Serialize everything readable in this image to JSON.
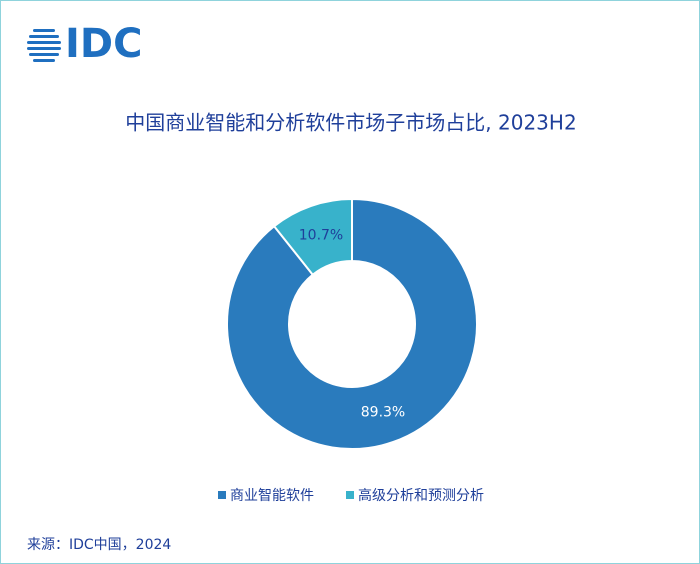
{
  "logo": "IDC",
  "chart_data": {
    "type": "donut",
    "title": "中国商业智能和分析软件市场子市场占比, 2023H2",
    "categories": [
      "商业智能软件",
      "高级分析和预测分析"
    ],
    "values": [
      89.3,
      10.7
    ],
    "value_labels": [
      "89.3%",
      "10.7%"
    ],
    "colors": [
      "#2a7bbd",
      "#38b2cb"
    ],
    "legend": "bottom"
  },
  "source": "来源：IDC中国，2024"
}
